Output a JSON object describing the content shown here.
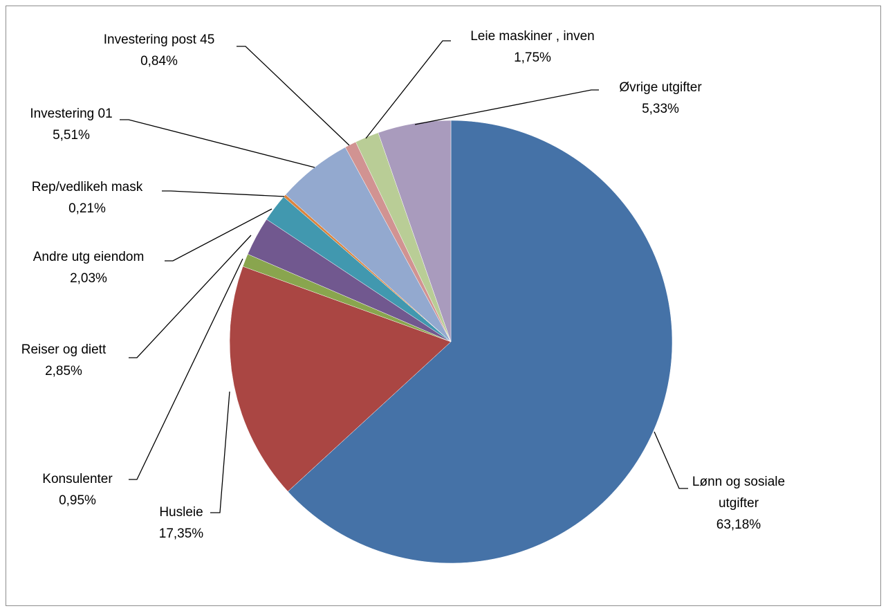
{
  "chart_data": {
    "type": "pie",
    "title": "",
    "start_angle_deg": 0,
    "direction": "clockwise",
    "legend": "none",
    "slices": [
      {
        "label": "Lønn og sosiale utgifter",
        "label_lines": [
          "Lønn og sosiale",
          "utgifter"
        ],
        "value": 63.18,
        "value_label": "63,18%",
        "color": "#4572A7"
      },
      {
        "label": "Husleie",
        "label_lines": [
          "Husleie"
        ],
        "value": 17.35,
        "value_label": "17,35%",
        "color": "#AA4643"
      },
      {
        "label": "Konsulenter",
        "label_lines": [
          "Konsulenter"
        ],
        "value": 0.95,
        "value_label": "0,95%",
        "color": "#89A54E"
      },
      {
        "label": "Reiser og diett",
        "label_lines": [
          "Reiser og diett"
        ],
        "value": 2.85,
        "value_label": "2,85%",
        "color": "#71588F"
      },
      {
        "label": "Andre utg eiendom",
        "label_lines": [
          "Andre utg eiendom"
        ],
        "value": 2.03,
        "value_label": "2,03%",
        "color": "#4198AF"
      },
      {
        "label": "Rep/vedlikeh mask",
        "label_lines": [
          "Rep/vedlikeh mask"
        ],
        "value": 0.21,
        "value_label": "0,21%",
        "color": "#DB843D"
      },
      {
        "label": "Investering 01",
        "label_lines": [
          "Investering 01"
        ],
        "value": 5.51,
        "value_label": "5,51%",
        "color": "#93A9CF"
      },
      {
        "label": "Investering post 45",
        "label_lines": [
          "Investering post 45"
        ],
        "value": 0.84,
        "value_label": "0,84%",
        "color": "#D19392"
      },
      {
        "label": "Leie maskiner , inven",
        "label_lines": [
          "Leie maskiner , inven"
        ],
        "value": 1.75,
        "value_label": "1,75%",
        "color": "#B9CD96"
      },
      {
        "label": "Øvrige utgifter",
        "label_lines": [
          "Øvrige utgifter"
        ],
        "value": 5.33,
        "value_label": "5,33%",
        "color": "#A99BBD"
      }
    ]
  }
}
